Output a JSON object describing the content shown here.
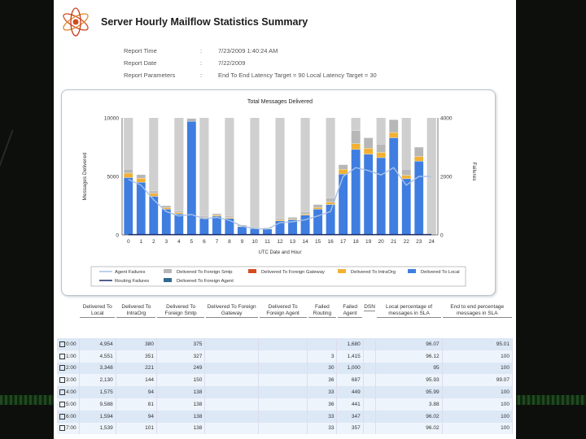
{
  "report": {
    "title": "Server Hourly Mailflow Statistics Summary",
    "params": [
      {
        "label": "Report Time",
        "value": "7/23/2009 1:40:24 AM"
      },
      {
        "label": "Report Date",
        "value": "7/22/2009"
      },
      {
        "label": "Report Parameters",
        "value": "End To End Latency Target = 90 Local Latency Target = 30"
      }
    ],
    "colon": ":"
  },
  "chart_data": {
    "type": "bar",
    "title": "Total Messages Delivered",
    "xlabel": "UTC Date and Hour",
    "ylabel": "Messages Delivered",
    "y2label": "Failures",
    "ylim": [
      0,
      10000
    ],
    "y2lim": [
      0,
      4000
    ],
    "yticks": [
      "10000",
      "5000",
      "0"
    ],
    "y2ticks": [
      "4000",
      "2000",
      "0"
    ],
    "categories": [
      "0",
      "1",
      "2",
      "3",
      "4",
      "5",
      "6",
      "7",
      "8",
      "9",
      "10",
      "11",
      "12",
      "13",
      "14",
      "15",
      "16",
      "17",
      "18",
      "19",
      "20",
      "21",
      "22",
      "23",
      "24"
    ],
    "stacked_series": [
      {
        "name": "Delivered To Local",
        "color": "#3f7ee0",
        "values": [
          4900,
          4500,
          3300,
          2200,
          1800,
          9700,
          1400,
          1600,
          1400,
          700,
          550,
          500,
          1200,
          1300,
          1700,
          2200,
          2600,
          5200,
          7300,
          6900,
          6600,
          8300,
          4800,
          6300,
          0
        ]
      },
      {
        "name": "Delivered To IntraOrg",
        "color": "#f2b134",
        "values": [
          380,
          350,
          250,
          140,
          110,
          0,
          80,
          90,
          80,
          60,
          50,
          40,
          90,
          80,
          100,
          150,
          200,
          400,
          500,
          500,
          450,
          450,
          300,
          400,
          0
        ]
      },
      {
        "name": "Delivered To Foreign Gateway",
        "color": "#d54c1f",
        "values": [
          0,
          0,
          0,
          0,
          0,
          0,
          0,
          0,
          0,
          0,
          0,
          0,
          0,
          0,
          0,
          0,
          0,
          0,
          0,
          0,
          0,
          0,
          0,
          0,
          0
        ]
      },
      {
        "name": "Delivered To Foreign Smtp",
        "color": "#b7b7b7",
        "values": [
          320,
          300,
          200,
          160,
          130,
          250,
          120,
          130,
          120,
          90,
          80,
          70,
          120,
          120,
          150,
          250,
          350,
          400,
          1100,
          900,
          700,
          1100,
          500,
          800,
          0
        ]
      }
    ],
    "background_bars": {
      "name": "Delivered To Foreign Agent",
      "color": "#cfcfcf",
      "value": 10000,
      "indices": [
        0,
        2,
        4,
        6,
        8,
        10,
        12,
        14,
        16,
        18,
        20,
        22,
        24
      ]
    },
    "line_series": [
      {
        "name": "Agent Failures",
        "color": "#a9c1e6",
        "axis": "y2",
        "values": [
          1900,
          1700,
          1200,
          800,
          650,
          700,
          550,
          600,
          500,
          300,
          220,
          200,
          420,
          450,
          520,
          650,
          800,
          2000,
          2300,
          2200,
          2050,
          2300,
          1700,
          2000,
          2000
        ]
      },
      {
        "name": "Routing Failures",
        "color": "#1b2b6b",
        "axis": "y2",
        "values": [
          10,
          10,
          10,
          10,
          10,
          10,
          10,
          10,
          10,
          10,
          10,
          10,
          10,
          10,
          10,
          10,
          10,
          10,
          10,
          10,
          10,
          10,
          10,
          10,
          10
        ]
      }
    ],
    "legend": [
      {
        "name": "Agent Failures",
        "color": "#a9c1e6",
        "kind": "line"
      },
      {
        "name": "Delivered To Foreign Smtp",
        "color": "#b7b7b7",
        "kind": "box"
      },
      {
        "name": "Delivered To Foreign Gateway",
        "color": "#d54c1f",
        "kind": "box"
      },
      {
        "name": "Delivered To IntraOrg",
        "color": "#f2b134",
        "kind": "box"
      },
      {
        "name": "Delivered To Local",
        "color": "#3f7ee0",
        "kind": "box"
      },
      {
        "name": "Routing Failures",
        "color": "#1b2b6b",
        "kind": "line"
      },
      {
        "name": "Delivered To Foreign Agent",
        "color": "#2f6b8f",
        "kind": "box"
      }
    ],
    "legend_position": "bottom"
  },
  "table": {
    "headers": [
      "",
      "Delivered To Local",
      "Delivered To IntraOrg",
      "Delivered To Foreign Smtp",
      "Delivered To Foreign Gateway",
      "Delivered To Foreign Agent",
      "Failed Routing",
      "Failed Agent",
      "DSN",
      "Local percentage of messages in SLA",
      "End to end percentage messages in SLA"
    ],
    "rows": [
      [
        "0:00",
        "4,954",
        "380",
        "375",
        "",
        "",
        "",
        "1,680",
        "",
        "96.07",
        "95.01"
      ],
      [
        "1:00",
        "4,551",
        "351",
        "327",
        "",
        "",
        "3",
        "1,415",
        "",
        "96.12",
        "100"
      ],
      [
        "2:00",
        "3,348",
        "221",
        "249",
        "",
        "",
        "30",
        "1,000",
        "",
        "95",
        "100"
      ],
      [
        "3:00",
        "2,130",
        "144",
        "150",
        "",
        "",
        "36",
        "687",
        "",
        "95.93",
        "99.07"
      ],
      [
        "4:00",
        "1,575",
        "94",
        "138",
        "",
        "",
        "33",
        "449",
        "",
        "95.99",
        "100"
      ],
      [
        "5:00",
        "9,588",
        "81",
        "138",
        "",
        "",
        "36",
        "441",
        "",
        "3.88",
        "100"
      ],
      [
        "6:00",
        "1,594",
        "94",
        "138",
        "",
        "",
        "33",
        "347",
        "",
        "96.02",
        "100"
      ],
      [
        "7:00",
        "1,539",
        "101",
        "138",
        "",
        "",
        "33",
        "357",
        "",
        "96.02",
        "100"
      ]
    ]
  }
}
